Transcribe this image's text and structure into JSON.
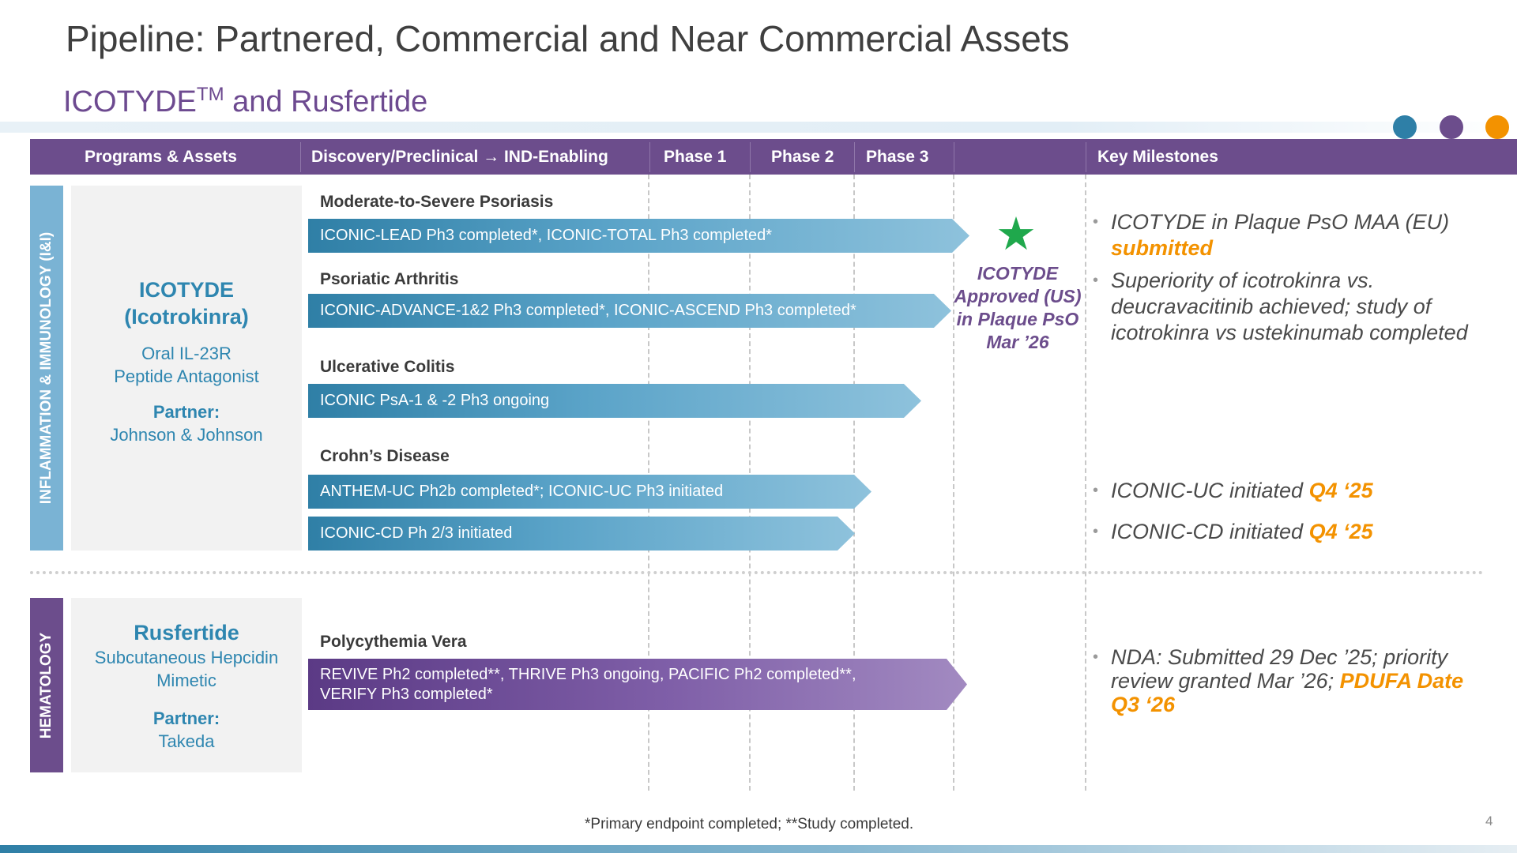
{
  "title": "Pipeline: Partnered, Commercial and Near Commercial Assets",
  "subtitle": {
    "main": "ICOTYDE",
    "sup": "TM",
    "rest": " and Rusfertide"
  },
  "dot_colors": [
    "#2e7fa7",
    "#6c4d8c",
    "#f39200"
  ],
  "header": {
    "programs": "Programs & Assets",
    "discovery": "Discovery/Preclinical → IND-Enabling",
    "phase1": "Phase 1",
    "phase2": "Phase 2",
    "phase3": "Phase 3",
    "milestones": "Key Milestones"
  },
  "sections": {
    "ini": {
      "band": "INFLAMMATION & IMMUNOLOGY (I&I)",
      "program": {
        "title_line1": "ICOTYDE",
        "title_line2": "(Icotrokinra)",
        "desc_line1": "Oral IL-23R",
        "desc_line2": "Peptide Antagonist",
        "partner_label": "Partner:",
        "partner": "Johnson & Johnson"
      },
      "indications": [
        "Moderate-to-Severe Psoriasis",
        "Psoriatic Arthritis",
        "Ulcerative Colitis",
        "Crohn’s Disease"
      ],
      "arrows": [
        {
          "text": "ICONIC-LEAD Ph3 completed*, ICONIC-TOTAL Ph3 completed*",
          "progress": "Phase 3 complete"
        },
        {
          "text": "ICONIC-ADVANCE-1&2 Ph3 completed*, ICONIC-ASCEND Ph3 completed*",
          "progress": "Phase 3 complete"
        },
        {
          "text": "ICONIC PsA-1 & -2 Ph3 ongoing",
          "progress": "Phase 3"
        },
        {
          "text": "ANTHEM-UC Ph2b completed*; ICONIC-UC Ph3 initiated",
          "progress": "Phase 2 complete"
        },
        {
          "text": "ICONIC-CD Ph 2/3 initiated",
          "progress": "Phase 2"
        }
      ],
      "approval": {
        "icon": "star-icon",
        "line1": "ICOTYDE",
        "line2": "Approved (US)",
        "line3": "in Plaque PsO",
        "line4": "Mar ’26"
      },
      "milestones": [
        {
          "text": "ICOTYDE in Plaque PsO MAA (EU)",
          "highlight": "submitted"
        },
        {
          "text": "Superiority of icotrokinra vs. deucravacitinib achieved; study of icotrokinra vs ustekinumab completed",
          "highlight": ""
        },
        {
          "text": "ICONIC-UC initiated",
          "highlight": "Q4 ‘25"
        },
        {
          "text": "ICONIC-CD initiated",
          "highlight": "Q4 ‘25"
        }
      ]
    },
    "hem": {
      "band": "HEMATOLOGY",
      "program": {
        "title": "Rusfertide",
        "desc_line1": "Subcutaneous Hepcidin",
        "desc_line2": "Mimetic",
        "partner_label": "Partner:",
        "partner": "Takeda"
      },
      "indication": "Polycythemia Vera",
      "arrow_line1": "REVIVE Ph2 completed**, THRIVE Ph3 ongoing, PACIFIC Ph2 completed**,",
      "arrow_line2": "VERIFY Ph3 completed*",
      "milestone": {
        "text": "NDA: Submitted 29 Dec ’25; priority review granted Mar ’26;",
        "highlight": "PDUFA Date Q3 ‘26"
      }
    }
  },
  "footnote": "*Primary endpoint completed; **Study completed.",
  "page_number": "4"
}
